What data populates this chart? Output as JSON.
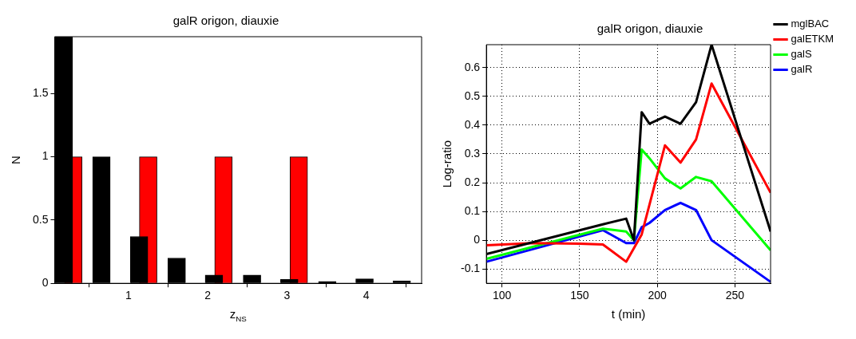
{
  "chart_data": [
    {
      "type": "bar",
      "title": "galR origon, diauxie",
      "xlabel": "z$_{NS}$",
      "ylabel": "N",
      "xlim": [
        0.07,
        4.7
      ],
      "ylim": [
        0,
        1.95
      ],
      "xticks": [
        1,
        2,
        3,
        4
      ],
      "yticks": [
        0,
        0.5,
        1,
        1.5
      ],
      "grid": false,
      "series": [
        {
          "color": "#000000",
          "x": [
            0.185,
            0.66,
            1.135,
            1.61,
            2.08,
            2.56,
            3.03,
            3.51,
            3.98,
            4.45
          ],
          "values": [
            1.95,
            1,
            0.37,
            0.2,
            0.065,
            0.065,
            0.03,
            0.015,
            0.035,
            0.02
          ]
        },
        {
          "color": "#ff0000",
          "x": [
            0.305,
            1.25,
            2.2,
            3.15
          ],
          "values": [
            1,
            1,
            1,
            1
          ]
        }
      ]
    },
    {
      "type": "line",
      "title": "galR origon, diauxie",
      "xlabel": "t (min)",
      "ylabel": "Log-ratio",
      "xlim": [
        90,
        273
      ],
      "ylim": [
        -0.15,
        0.68
      ],
      "xticks": [
        100,
        150,
        200,
        250
      ],
      "yticks": [
        -0.1,
        0,
        0.1,
        0.2,
        0.3,
        0.4,
        0.5,
        0.6
      ],
      "grid": true,
      "legend": "right",
      "series": [
        {
          "name": "mglBAC",
          "color": "#000000",
          "x": [
            90,
            165,
            180,
            185,
            190,
            195,
            205,
            215,
            225,
            235,
            273
          ],
          "values": [
            -0.048,
            0.055,
            0.075,
            0.0,
            0.445,
            0.405,
            0.43,
            0.405,
            0.48,
            0.68,
            0.03
          ]
        },
        {
          "name": "galETKM",
          "color": "#ff0000",
          "x": [
            90,
            120,
            150,
            165,
            180,
            190,
            205,
            215,
            225,
            235,
            273
          ],
          "values": [
            -0.018,
            -0.01,
            -0.012,
            -0.015,
            -0.075,
            0.02,
            0.33,
            0.27,
            0.35,
            0.545,
            0.165
          ]
        },
        {
          "name": "galS",
          "color": "#00ff00",
          "x": [
            90,
            165,
            180,
            185,
            190,
            195,
            205,
            215,
            225,
            235,
            273
          ],
          "values": [
            -0.065,
            0.04,
            0.03,
            0.0,
            0.315,
            0.285,
            0.215,
            0.18,
            0.22,
            0.205,
            -0.035
          ]
        },
        {
          "name": "galR",
          "color": "#0000ff",
          "x": [
            90,
            165,
            180,
            185,
            190,
            195,
            205,
            215,
            225,
            235,
            273
          ],
          "values": [
            -0.075,
            0.035,
            -0.01,
            -0.01,
            0.045,
            0.06,
            0.105,
            0.13,
            0.105,
            0.0,
            -0.145
          ]
        }
      ]
    }
  ]
}
